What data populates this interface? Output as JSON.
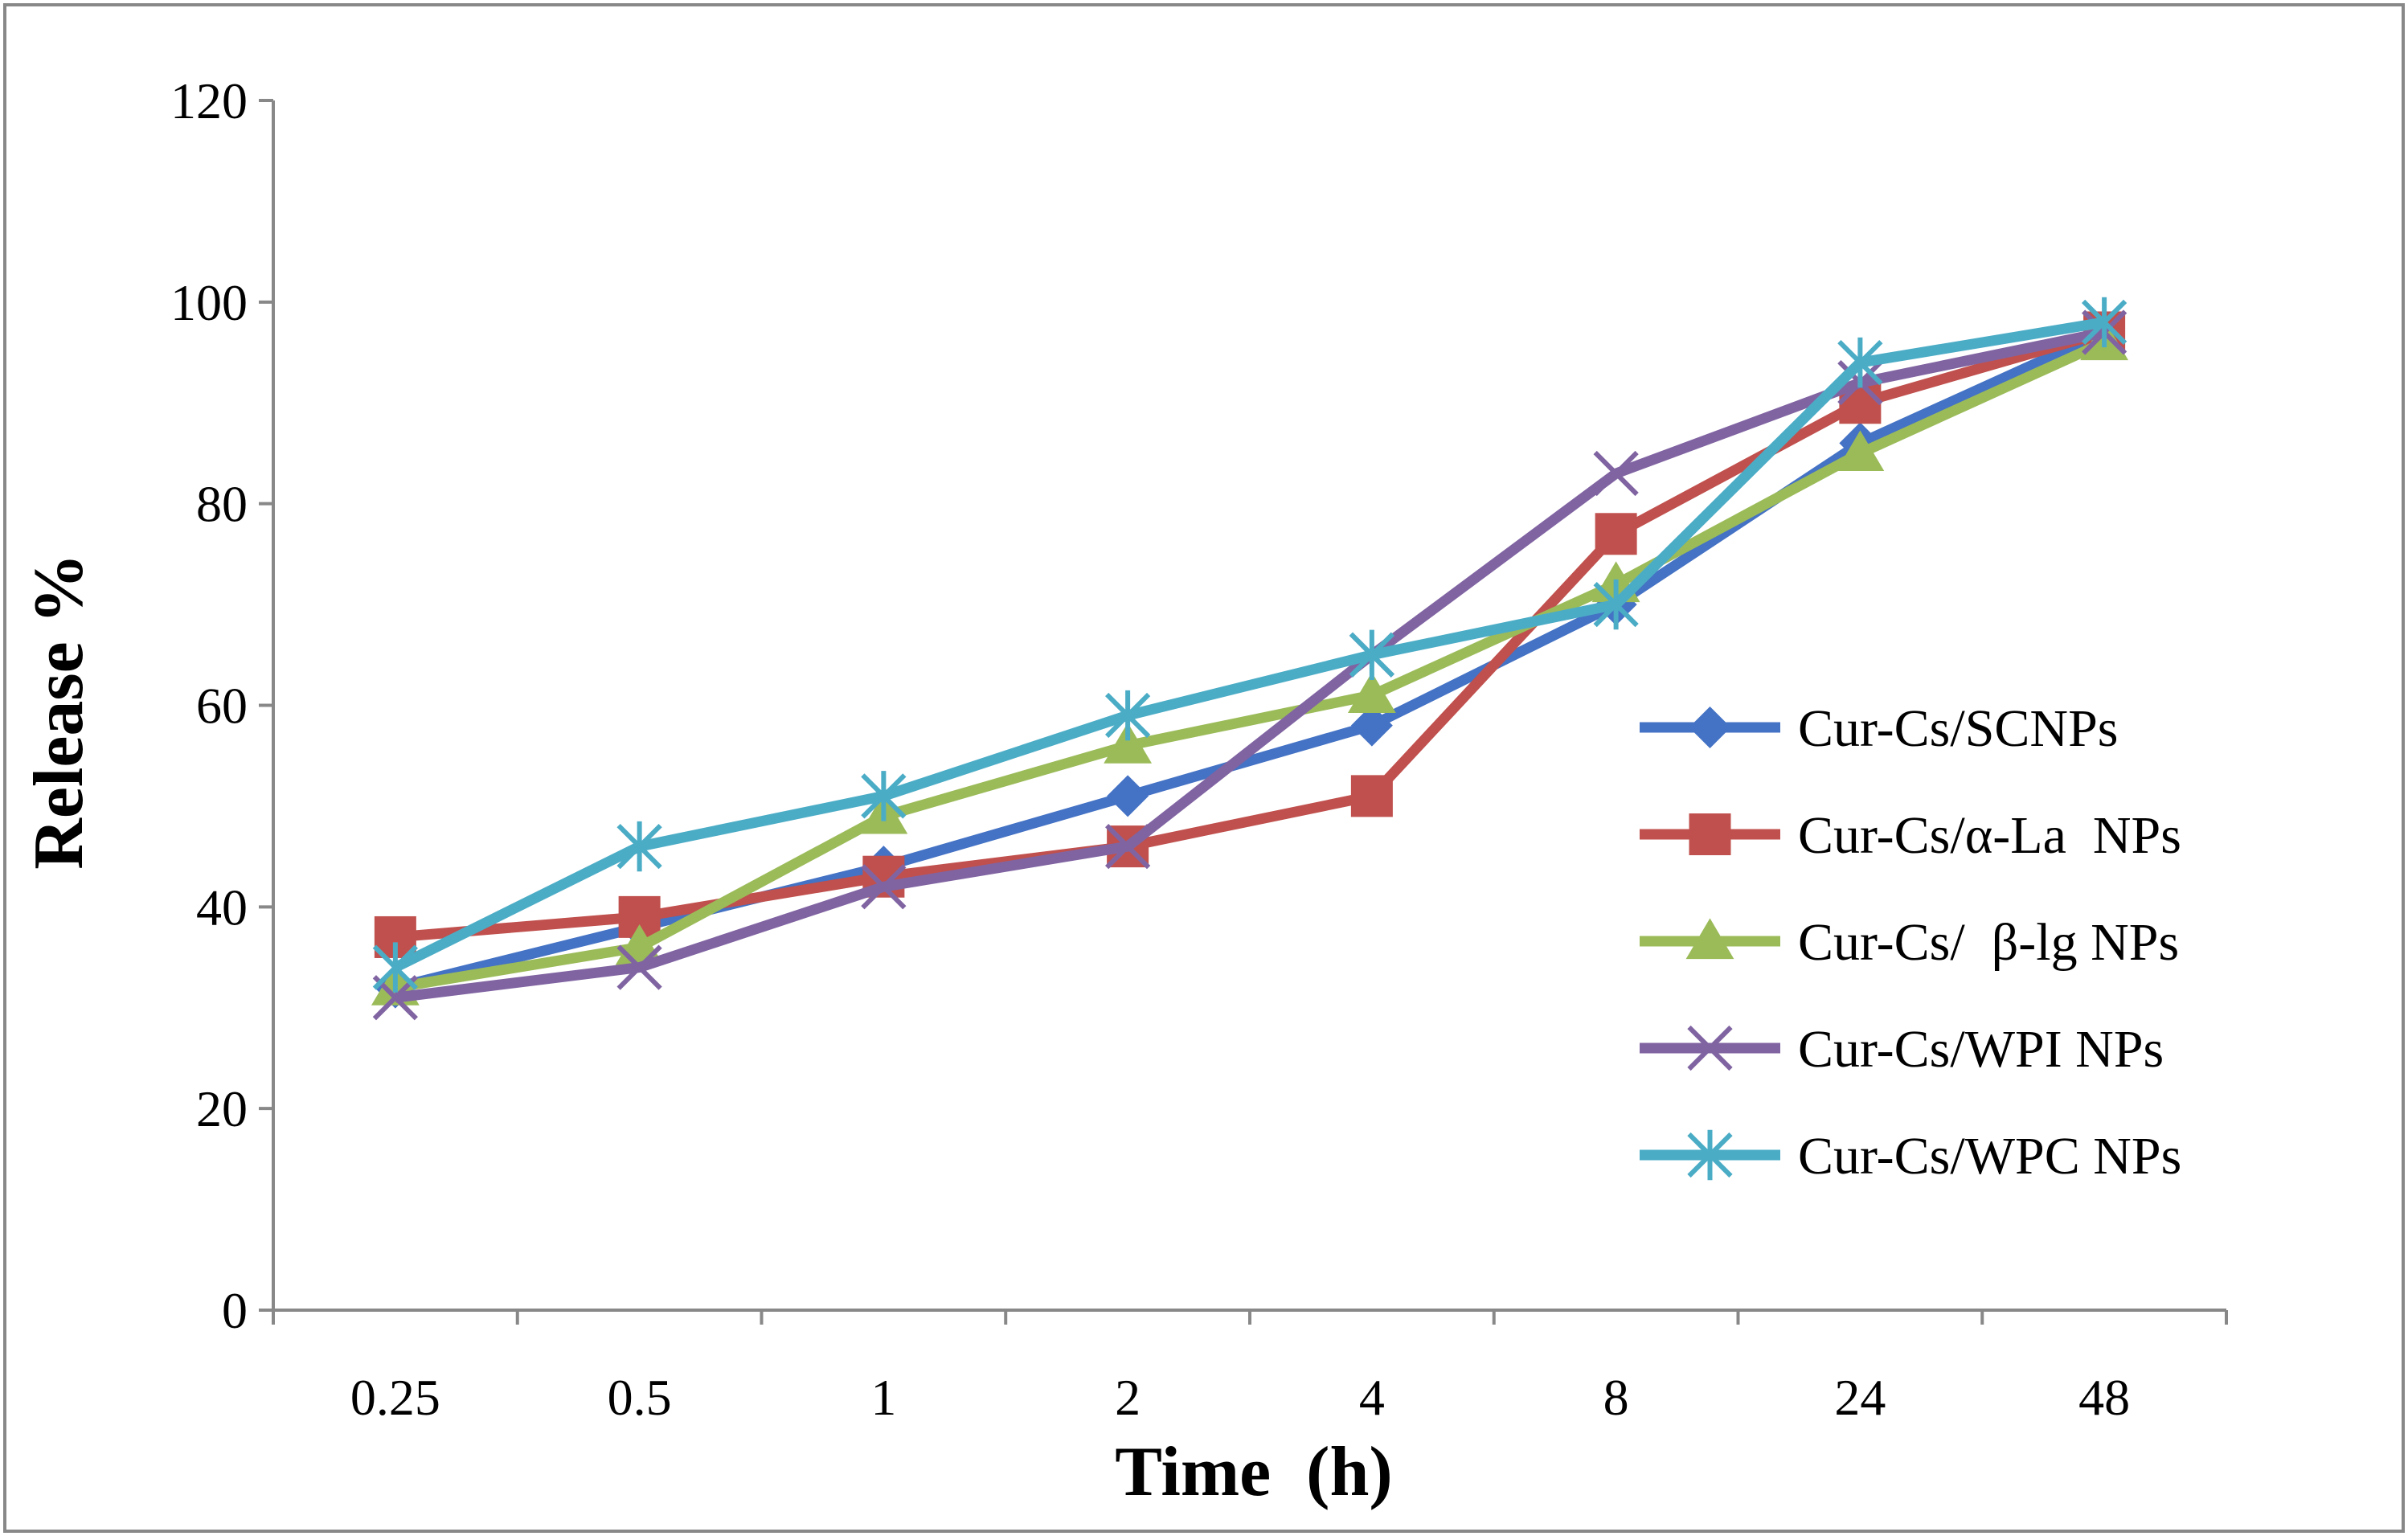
{
  "chart_data": {
    "type": "line",
    "title": "",
    "xlabel": "Time  (h)",
    "ylabel": "Release %",
    "categories": [
      "0.25",
      "0.5",
      "1",
      "2",
      "4",
      "8",
      "24",
      "48"
    ],
    "ylim": [
      0,
      120
    ],
    "yticks": [
      "0",
      "20",
      "40",
      "60",
      "80",
      "100",
      "120"
    ],
    "grid": false,
    "legend_position": "right",
    "series": [
      {
        "name": "Cur-Cs/SCNPs",
        "color": "#4472C4",
        "marker": "diamond",
        "values": [
          32,
          38,
          44,
          51,
          58,
          70,
          86,
          97
        ]
      },
      {
        "name": "Cur-Cs/α-La  NPs",
        "color": "#C0504D",
        "marker": "square",
        "values": [
          37,
          39,
          43,
          46,
          51,
          77,
          90,
          97
        ]
      },
      {
        "name": "Cur-Cs/  β-lg NPs",
        "color": "#9BBB59",
        "marker": "triangle",
        "values": [
          32,
          36,
          49,
          56,
          61,
          72,
          85,
          96
        ]
      },
      {
        "name": "Cur-Cs/WPI NPs",
        "color": "#8064A2",
        "marker": "x",
        "values": [
          31,
          34,
          42,
          46,
          65,
          83,
          92,
          97
        ]
      },
      {
        "name": "Cur-Cs/WPC NPs",
        "color": "#4BACC6",
        "marker": "asterisk",
        "values": [
          34,
          46,
          51,
          59,
          65,
          70,
          94,
          98
        ]
      }
    ]
  }
}
